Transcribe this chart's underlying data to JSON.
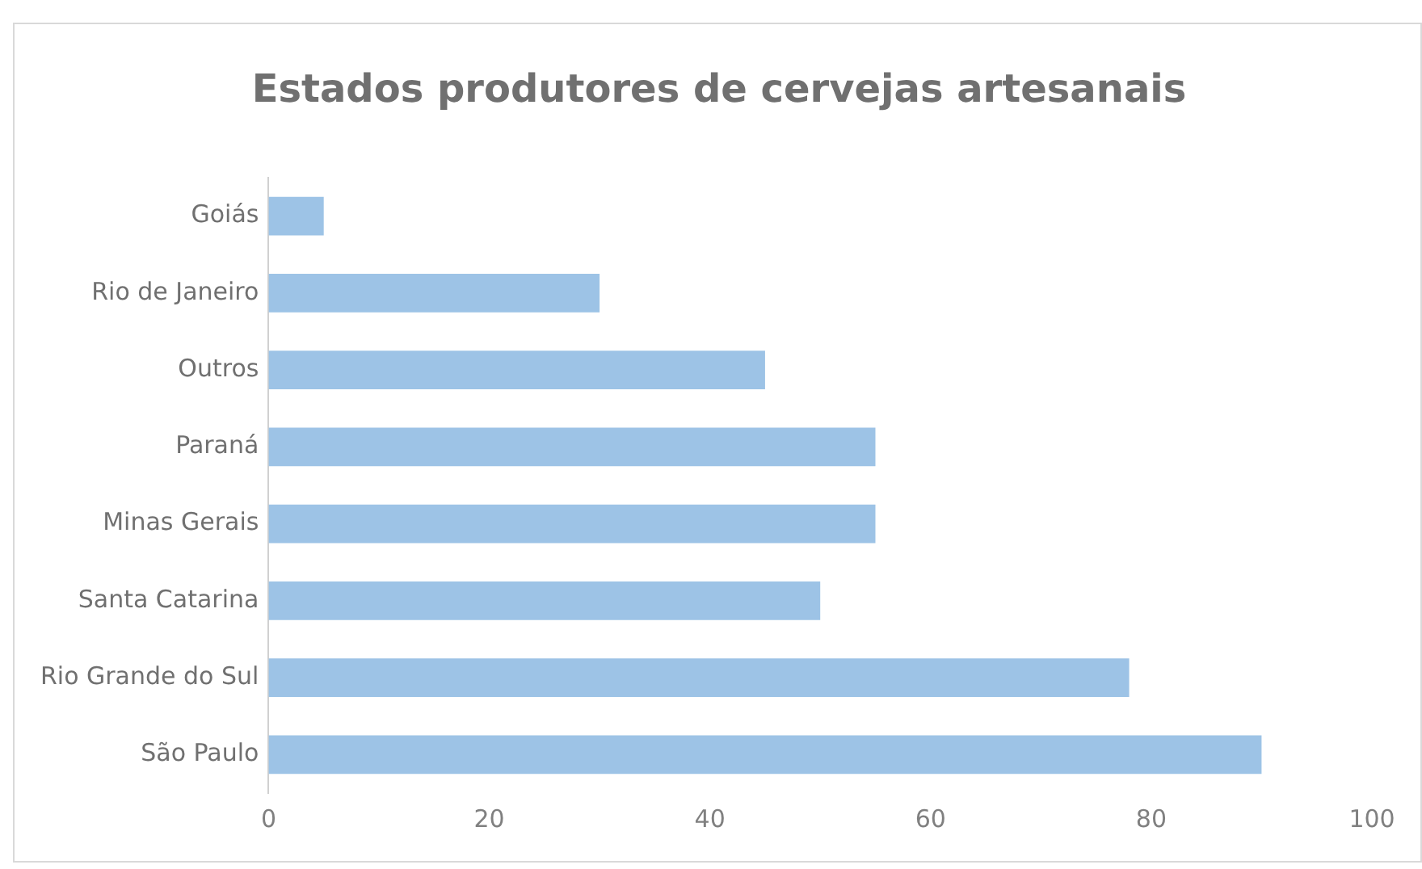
{
  "chart_data": {
    "type": "bar",
    "orientation": "horizontal",
    "title": "Estados produtores de cervejas artesanais",
    "categories": [
      "Goiás",
      "Rio de Janeiro",
      "Outros",
      "Paraná",
      "Minas Gerais",
      "Santa Catarina",
      "Rio Grande do Sul",
      "São Paulo"
    ],
    "values": [
      5,
      30,
      45,
      55,
      55,
      50,
      78,
      90
    ],
    "color": "#9dc3e6",
    "xlim": [
      0,
      100
    ],
    "xticks": [
      0,
      20,
      40,
      60,
      80,
      100
    ],
    "grid": false,
    "legend": false
  }
}
